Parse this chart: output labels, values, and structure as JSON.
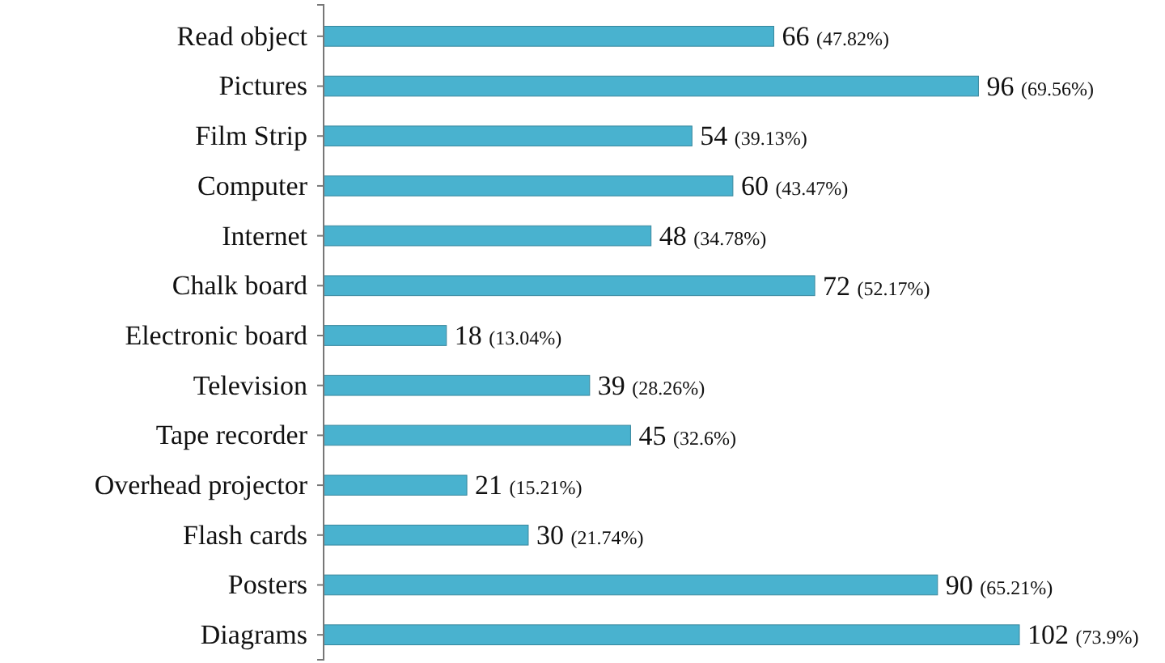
{
  "chart_data": {
    "type": "bar",
    "orientation": "horizontal",
    "categories": [
      "Read object",
      "Pictures",
      "Film Strip",
      "Computer",
      "Internet",
      "Chalk board",
      "Electronic board",
      "Television",
      "Tape recorder",
      "Overhead projector",
      "Flash cards",
      "Posters",
      "Diagrams"
    ],
    "values": [
      66,
      96,
      54,
      60,
      48,
      72,
      18,
      39,
      45,
      21,
      30,
      90,
      102
    ],
    "value_labels": [
      "66 (47.82%)",
      "96 (69.56%)",
      "54 (39.13%)",
      "60 (43.47%)",
      "48 (34.78%)",
      "72 (52.17%)",
      "18 (13.04%)",
      "39 (28.26%)",
      "45 (32.6%)",
      "21 (15.21%)",
      "30 (21.74%)",
      "90 (65.21%)",
      "102 (73.9%)"
    ],
    "color": "#49b2cf"
  }
}
